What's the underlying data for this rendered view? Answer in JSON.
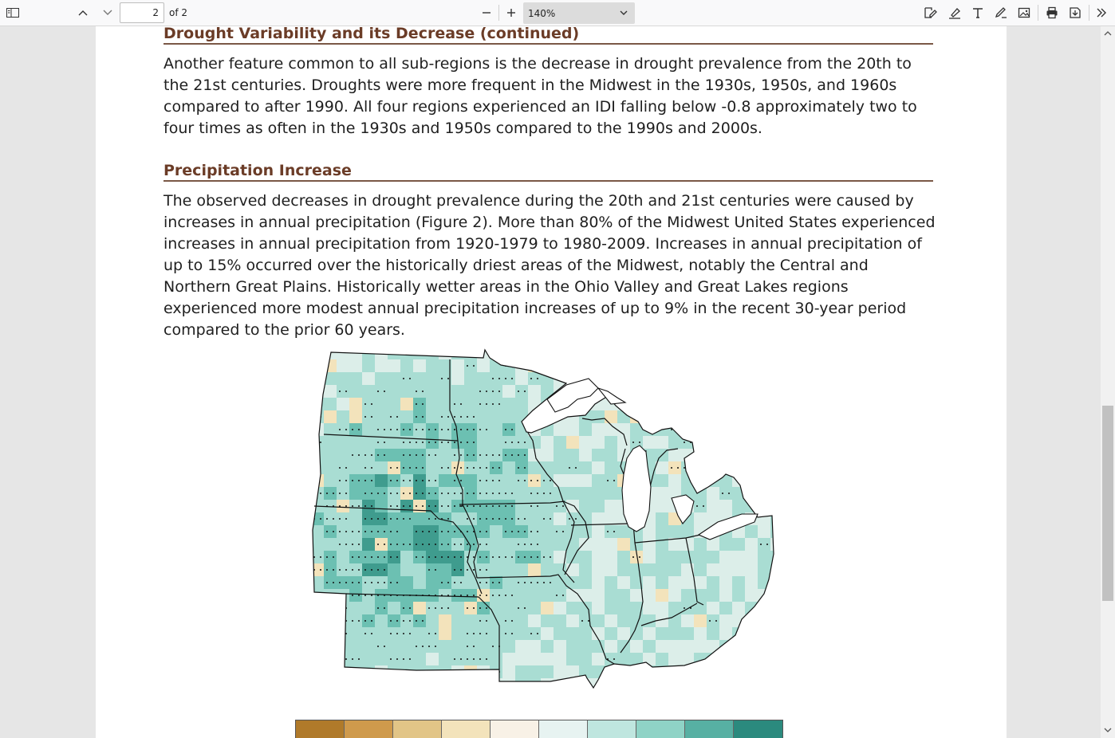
{
  "toolbar": {
    "current_page": "2",
    "page_count_label": "of 2",
    "zoom_value": "140%",
    "icons": [
      "sidebar-toggle-icon",
      "previous-page-icon",
      "next-page-icon",
      "zoom-out-icon",
      "zoom-in-icon",
      "edit-pdf-icon",
      "highlight-icon",
      "text-icon",
      "draw-icon",
      "image-icon",
      "print-icon",
      "save-icon",
      "more-tools-icon"
    ]
  },
  "document": {
    "heading1": "Drought Variability and its Decrease (continued)",
    "para1": "Another feature common to all sub-regions is the decrease in drought prevalence from the 20th to the 21st centuries. Droughts were more frequent in the Midwest in the 1930s, 1950s, and 1960s compared to after 1990. All four regions experienced an IDI falling below -0.8 approximately two to four times as often in the 1930s and 1950s compared to the 1990s and 2000s.",
    "heading2": "Precipitation Increase",
    "para2": "The observed decreases in drought prevalence during the 20th and 21st centuries were caused by increases in annual precipitation (Figure 2). More than 80% of the Midwest United States experienced in­creases in annual precipitation from 1920-1979 to 1980-2009. Increases in annual precipitation of up to 15% occurred over the historically driest areas of the Midwest, notably the Central and Northern Great Plains. Historically wetter areas in the Ohio Valley and Great Lakes regions experienced more modest annual precipitation increases of up to 9% in the recent 30-year period compared to the prior 60 years."
  },
  "legend": {
    "colors": [
      "#b07a2a",
      "#cf9a4c",
      "#e2c587",
      "#f3e3bb",
      "#f8f1e6",
      "#e7f3f1",
      "#bfe6df",
      "#8fd3c6",
      "#57b0a3",
      "#2b8a7e"
    ]
  },
  "map_colors": {
    "light": "#dceee9",
    "mid": "#a9ddd3",
    "strong": "#6cc0b2",
    "deep": "#3f9c8e",
    "outline": "#111111"
  }
}
